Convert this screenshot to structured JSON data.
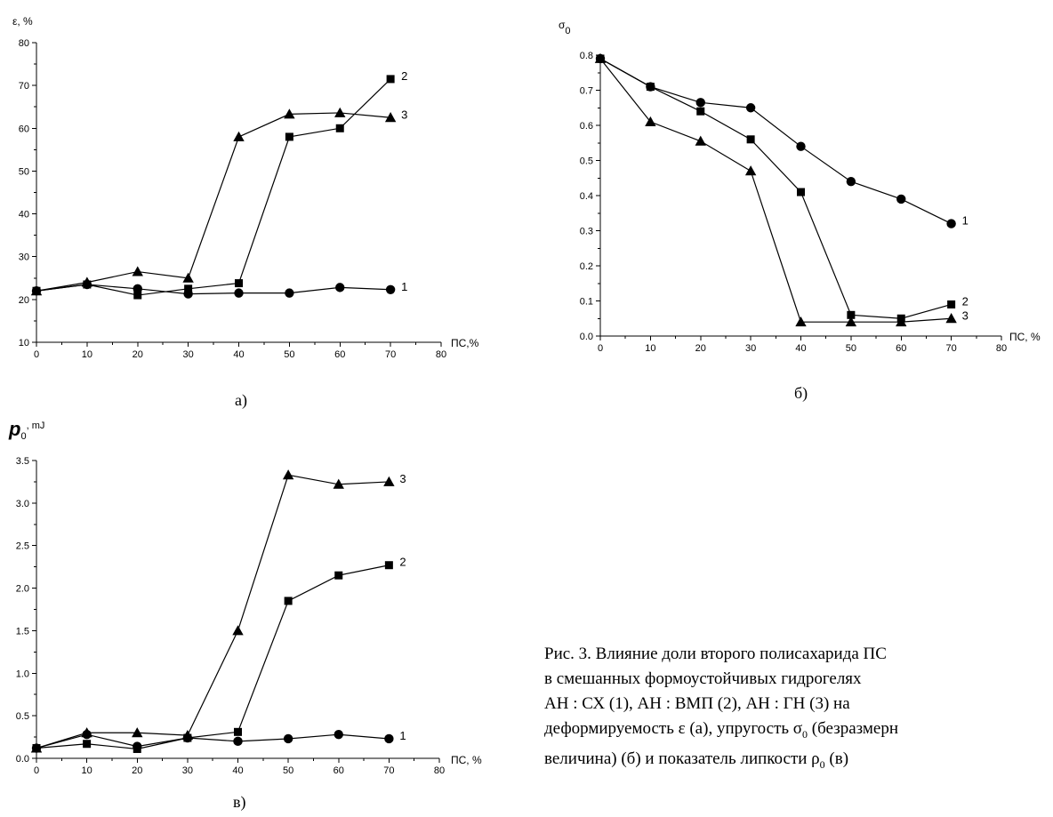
{
  "panels": [
    {
      "letter": "а)",
      "chart_data": {
        "type": "line",
        "xlabel": "ПС,%",
        "ylabel": "ε, %",
        "xlim": [
          0,
          80
        ],
        "ylim": [
          10,
          80
        ],
        "xticks": [
          "0",
          "10",
          "20",
          "30",
          "40",
          "50",
          "60",
          "70",
          "80"
        ],
        "yticks": [
          "10",
          "20",
          "30",
          "40",
          "50",
          "60",
          "70",
          "80"
        ],
        "series": [
          {
            "name": "1",
            "marker": "circle",
            "x": [
              0,
              10,
              20,
              30,
              40,
              50,
              60,
              70
            ],
            "values": [
              22,
              23.5,
              22.5,
              21.3,
              21.5,
              21.5,
              22.8,
              22.3
            ]
          },
          {
            "name": "2",
            "marker": "square",
            "x": [
              0,
              10,
              20,
              30,
              40,
              50,
              60,
              70
            ],
            "values": [
              22,
              23.5,
              21,
              22.5,
              23.8,
              58,
              60,
              71.5
            ]
          },
          {
            "name": "3",
            "marker": "triangle",
            "x": [
              0,
              10,
              20,
              30,
              40,
              50,
              60,
              70
            ],
            "values": [
              22,
              24,
              26.5,
              25,
              58,
              63.3,
              63.6,
              62.5
            ]
          }
        ]
      }
    },
    {
      "letter": "б)",
      "chart_data": {
        "type": "line",
        "xlabel": "ПС, %",
        "ylabel": "σ₀",
        "xlim": [
          0,
          80
        ],
        "ylim": [
          0,
          0.8
        ],
        "xticks": [
          "0",
          "10",
          "20",
          "30",
          "40",
          "50",
          "60",
          "70",
          "80"
        ],
        "yticks": [
          "0.0",
          "0.1",
          "0.2",
          "0.3",
          "0.4",
          "0.5",
          "0.6",
          "0.7",
          "0.8"
        ],
        "series": [
          {
            "name": "1",
            "marker": "circle",
            "x": [
              0,
              10,
              20,
              30,
              40,
              50,
              60,
              70
            ],
            "values": [
              0.79,
              0.71,
              0.665,
              0.65,
              0.54,
              0.44,
              0.39,
              0.32
            ]
          },
          {
            "name": "2",
            "marker": "square",
            "x": [
              0,
              10,
              20,
              30,
              40,
              50,
              60,
              70
            ],
            "values": [
              0.79,
              0.71,
              0.64,
              0.56,
              0.41,
              0.06,
              0.05,
              0.09
            ]
          },
          {
            "name": "3",
            "marker": "triangle",
            "x": [
              0,
              10,
              20,
              30,
              40,
              50,
              60,
              70
            ],
            "values": [
              0.79,
              0.61,
              0.555,
              0.47,
              0.04,
              0.04,
              0.04,
              0.05
            ]
          }
        ]
      }
    },
    {
      "letter": "в)",
      "chart_data": {
        "type": "line",
        "xlabel": "ПС, %",
        "ylabel": "p₀, mJ",
        "xlim": [
          0,
          80
        ],
        "ylim": [
          0,
          3.5
        ],
        "xticks": [
          "0",
          "10",
          "20",
          "30",
          "40",
          "50",
          "60",
          "70",
          "80"
        ],
        "yticks": [
          "0.0",
          "0.5",
          "1.0",
          "1.5",
          "2.0",
          "2.5",
          "3.0",
          "3.5"
        ],
        "series": [
          {
            "name": "1",
            "marker": "circle",
            "x": [
              0,
              10,
              20,
              30,
              40,
              50,
              60,
              70
            ],
            "values": [
              0.12,
              0.28,
              0.14,
              0.24,
              0.2,
              0.23,
              0.28,
              0.23
            ]
          },
          {
            "name": "2",
            "marker": "square",
            "x": [
              0,
              10,
              20,
              30,
              40,
              50,
              60,
              70
            ],
            "values": [
              0.12,
              0.17,
              0.11,
              0.24,
              0.31,
              1.85,
              2.15,
              2.27
            ]
          },
          {
            "name": "3",
            "marker": "triangle",
            "x": [
              0,
              10,
              20,
              30,
              40,
              50,
              60,
              70
            ],
            "values": [
              0.12,
              0.3,
              0.3,
              0.27,
              1.5,
              3.33,
              3.22,
              3.25
            ]
          }
        ]
      }
    }
  ],
  "caption": {
    "line1": "Рис. 3. Влияние доли второго полисахарида ПС",
    "line2": "в смешанных формоустойчивых гидрогелях",
    "line3": "АН : СХ (1), АН : ВМП (2), АН : ГН (3) на",
    "line4a": "деформируемость ε (а), упругость σ",
    "line4sub": "0",
    "line4b": " (безразмерн",
    "line5a": "величина) (б) и показатель липкости ρ",
    "line5sub": "0",
    "line5b": " (в)"
  }
}
